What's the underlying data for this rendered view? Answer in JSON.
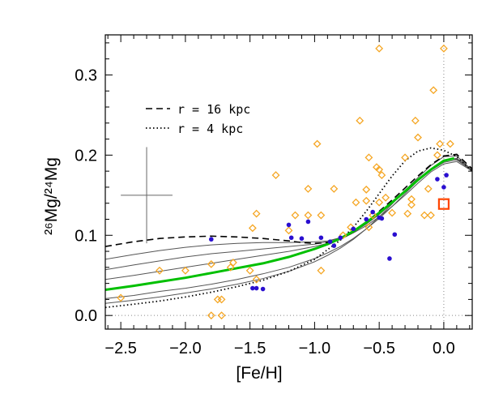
{
  "chart_data": {
    "type": "scatter",
    "xlabel": "[Fe/H]",
    "ylabel": "²⁶Mg/²⁴Mg",
    "xlim": [
      -2.62,
      0.22
    ],
    "ylim": [
      -0.017,
      0.35
    ],
    "xticks": [
      -2.5,
      -2.0,
      -1.5,
      -1.0,
      -0.5,
      0.0
    ],
    "xtick_labels": [
      "−2.5",
      "−2.0",
      "−1.5",
      "−1.0",
      "−0.5",
      "0.0"
    ],
    "yticks": [
      0.0,
      0.1,
      0.2,
      0.3
    ],
    "ytick_labels": [
      "0.0",
      "0.1",
      "0.2",
      "0.3"
    ],
    "legend": [
      {
        "label": "r = 16 kpc",
        "style": "dashed"
      },
      {
        "label": "r = 4 kpc",
        "style": "dotted"
      }
    ],
    "reference_lines": {
      "y": 0.0,
      "x": 0.0
    },
    "error_cross": {
      "x": -2.3,
      "y": 0.15,
      "dx": 0.2,
      "dy": 0.06
    },
    "sun": {
      "x": 0.0,
      "y": 0.139
    },
    "colors": {
      "diamond": "#f5a623",
      "dot": "#2a0fd0",
      "green": "#00c000",
      "sun": "#ff4500",
      "thin": "#555555",
      "black": "#000000"
    },
    "series": [
      {
        "marker": "diamond",
        "points": [
          [
            -2.5,
            0.022
          ],
          [
            -2.2,
            0.056
          ],
          [
            -2.0,
            0.056
          ],
          [
            -1.8,
            0.064
          ],
          [
            -1.8,
            0.0
          ],
          [
            -1.75,
            0.02
          ],
          [
            -1.72,
            0.02
          ],
          [
            -1.72,
            0.0
          ],
          [
            -1.65,
            0.06
          ],
          [
            -1.63,
            0.066
          ],
          [
            -1.5,
            0.056
          ],
          [
            -1.45,
            0.045
          ],
          [
            -1.48,
            0.109
          ],
          [
            -1.45,
            0.127
          ],
          [
            -1.3,
            0.175
          ],
          [
            -1.2,
            0.106
          ],
          [
            -1.15,
            0.125
          ],
          [
            -1.05,
            0.158
          ],
          [
            -1.05,
            0.125
          ],
          [
            -0.98,
            0.214
          ],
          [
            -0.95,
            0.125
          ],
          [
            -0.95,
            0.056
          ],
          [
            -0.85,
            0.158
          ],
          [
            -0.78,
            0.1
          ],
          [
            -0.72,
            0.11
          ],
          [
            -0.68,
            0.141
          ],
          [
            -0.65,
            0.243
          ],
          [
            -0.6,
            0.157
          ],
          [
            -0.6,
            0.143
          ],
          [
            -0.58,
            0.197
          ],
          [
            -0.58,
            0.11
          ],
          [
            -0.55,
            0.125
          ],
          [
            -0.52,
            0.185
          ],
          [
            -0.5,
            0.141
          ],
          [
            -0.5,
            0.182
          ],
          [
            -0.5,
            0.333
          ],
          [
            -0.48,
            0.175
          ],
          [
            -0.45,
            0.147
          ],
          [
            -0.4,
            0.128
          ],
          [
            -0.3,
            0.197
          ],
          [
            -0.28,
            0.127
          ],
          [
            -0.25,
            0.145
          ],
          [
            -0.25,
            0.138
          ],
          [
            -0.22,
            0.243
          ],
          [
            -0.2,
            0.222
          ],
          [
            -0.15,
            0.125
          ],
          [
            -0.12,
            0.158
          ],
          [
            -0.1,
            0.125
          ],
          [
            -0.08,
            0.281
          ],
          [
            -0.05,
            0.2
          ],
          [
            -0.03,
            0.214
          ],
          [
            0.0,
            0.333
          ],
          [
            0.05,
            0.214
          ]
        ]
      },
      {
        "marker": "dot",
        "points": [
          [
            -1.8,
            0.095
          ],
          [
            -1.48,
            0.034
          ],
          [
            -1.45,
            0.034
          ],
          [
            -1.4,
            0.033
          ],
          [
            -1.2,
            0.113
          ],
          [
            -1.18,
            0.097
          ],
          [
            -1.1,
            0.096
          ],
          [
            -1.05,
            0.117
          ],
          [
            -0.95,
            0.097
          ],
          [
            -0.88,
            0.092
          ],
          [
            -0.85,
            0.087
          ],
          [
            -0.8,
            0.097
          ],
          [
            -0.7,
            0.108
          ],
          [
            -0.6,
            0.12
          ],
          [
            -0.55,
            0.129
          ],
          [
            -0.5,
            0.122
          ],
          [
            -0.48,
            0.121
          ],
          [
            -0.42,
            0.071
          ],
          [
            -0.38,
            0.101
          ],
          [
            -0.05,
            0.17
          ],
          [
            0.0,
            0.16
          ],
          [
            0.02,
            0.175
          ]
        ]
      }
    ],
    "model_curves": [
      {
        "style": "green",
        "points": [
          [
            -2.62,
            0.032
          ],
          [
            -2.4,
            0.037
          ],
          [
            -2.2,
            0.042
          ],
          [
            -2.0,
            0.047
          ],
          [
            -1.8,
            0.053
          ],
          [
            -1.6,
            0.059
          ],
          [
            -1.4,
            0.065
          ],
          [
            -1.2,
            0.073
          ],
          [
            -1.0,
            0.083
          ],
          [
            -0.9,
            0.089
          ],
          [
            -0.8,
            0.096
          ],
          [
            -0.7,
            0.105
          ],
          [
            -0.6,
            0.116
          ],
          [
            -0.5,
            0.128
          ],
          [
            -0.4,
            0.141
          ],
          [
            -0.3,
            0.155
          ],
          [
            -0.2,
            0.169
          ],
          [
            -0.1,
            0.182
          ],
          [
            0.0,
            0.193
          ],
          [
            0.08,
            0.196
          ]
        ]
      },
      {
        "style": "dashed",
        "points": [
          [
            -2.62,
            0.086
          ],
          [
            -2.4,
            0.092
          ],
          [
            -2.2,
            0.096
          ],
          [
            -2.0,
            0.098
          ],
          [
            -1.8,
            0.099
          ],
          [
            -1.6,
            0.098
          ],
          [
            -1.4,
            0.096
          ],
          [
            -1.2,
            0.093
          ],
          [
            -1.1,
            0.091
          ],
          [
            -1.0,
            0.09
          ],
          [
            -0.9,
            0.091
          ],
          [
            -0.8,
            0.095
          ],
          [
            -0.7,
            0.104
          ],
          [
            -0.6,
            0.116
          ],
          [
            -0.5,
            0.13
          ],
          [
            -0.4,
            0.144
          ],
          [
            -0.3,
            0.159
          ],
          [
            -0.2,
            0.174
          ],
          [
            -0.1,
            0.188
          ],
          [
            0.0,
            0.199
          ],
          [
            0.1,
            0.201
          ],
          [
            0.22,
            0.183
          ]
        ]
      },
      {
        "style": "dotted",
        "points": [
          [
            -2.62,
            0.01
          ],
          [
            -2.4,
            0.014
          ],
          [
            -2.2,
            0.018
          ],
          [
            -2.0,
            0.023
          ],
          [
            -1.8,
            0.029
          ],
          [
            -1.6,
            0.036
          ],
          [
            -1.4,
            0.044
          ],
          [
            -1.2,
            0.055
          ],
          [
            -1.0,
            0.07
          ],
          [
            -0.8,
            0.094
          ],
          [
            -0.7,
            0.11
          ],
          [
            -0.6,
            0.13
          ],
          [
            -0.5,
            0.152
          ],
          [
            -0.4,
            0.174
          ],
          [
            -0.3,
            0.193
          ],
          [
            -0.2,
            0.205
          ],
          [
            -0.1,
            0.209
          ],
          [
            0.0,
            0.206
          ],
          [
            0.1,
            0.198
          ],
          [
            0.22,
            0.18
          ]
        ]
      },
      {
        "style": "thin",
        "points": [
          [
            -2.62,
            0.07
          ],
          [
            -2.4,
            0.076
          ],
          [
            -2.2,
            0.081
          ],
          [
            -2.0,
            0.085
          ],
          [
            -1.8,
            0.088
          ],
          [
            -1.6,
            0.09
          ],
          [
            -1.4,
            0.091
          ],
          [
            -1.2,
            0.091
          ],
          [
            -1.0,
            0.092
          ],
          [
            -0.9,
            0.093
          ],
          [
            -0.8,
            0.097
          ],
          [
            -0.7,
            0.104
          ],
          [
            -0.6,
            0.114
          ],
          [
            -0.5,
            0.126
          ],
          [
            -0.4,
            0.14
          ],
          [
            -0.3,
            0.154
          ],
          [
            -0.2,
            0.168
          ],
          [
            -0.1,
            0.182
          ],
          [
            0.0,
            0.193
          ],
          [
            0.1,
            0.196
          ],
          [
            0.22,
            0.182
          ]
        ]
      },
      {
        "style": "thin",
        "points": [
          [
            -2.62,
            0.057
          ],
          [
            -2.4,
            0.063
          ],
          [
            -2.2,
            0.068
          ],
          [
            -2.0,
            0.073
          ],
          [
            -1.8,
            0.077
          ],
          [
            -1.6,
            0.08
          ],
          [
            -1.4,
            0.083
          ],
          [
            -1.2,
            0.086
          ],
          [
            -1.0,
            0.089
          ],
          [
            -0.9,
            0.092
          ],
          [
            -0.8,
            0.097
          ],
          [
            -0.7,
            0.105
          ],
          [
            -0.6,
            0.115
          ],
          [
            -0.5,
            0.127
          ],
          [
            -0.4,
            0.14
          ],
          [
            -0.3,
            0.154
          ],
          [
            -0.2,
            0.168
          ],
          [
            -0.1,
            0.181
          ],
          [
            0.0,
            0.191
          ],
          [
            0.1,
            0.194
          ],
          [
            0.22,
            0.181
          ]
        ]
      },
      {
        "style": "thin",
        "points": [
          [
            -2.62,
            0.045
          ],
          [
            -2.4,
            0.05
          ],
          [
            -2.2,
            0.055
          ],
          [
            -2.0,
            0.06
          ],
          [
            -1.8,
            0.065
          ],
          [
            -1.6,
            0.07
          ],
          [
            -1.4,
            0.075
          ],
          [
            -1.2,
            0.08
          ],
          [
            -1.0,
            0.086
          ],
          [
            -0.9,
            0.09
          ],
          [
            -0.8,
            0.095
          ],
          [
            -0.7,
            0.103
          ],
          [
            -0.6,
            0.112
          ],
          [
            -0.5,
            0.123
          ],
          [
            -0.4,
            0.136
          ],
          [
            -0.3,
            0.15
          ],
          [
            -0.2,
            0.165
          ],
          [
            -0.1,
            0.179
          ],
          [
            0.0,
            0.189
          ],
          [
            0.1,
            0.192
          ],
          [
            0.22,
            0.18
          ]
        ]
      },
      {
        "style": "thin",
        "points": [
          [
            -2.62,
            0.021
          ],
          [
            -2.4,
            0.025
          ],
          [
            -2.2,
            0.03
          ],
          [
            -2.0,
            0.034
          ],
          [
            -1.8,
            0.039
          ],
          [
            -1.6,
            0.045
          ],
          [
            -1.4,
            0.052
          ],
          [
            -1.2,
            0.06
          ],
          [
            -1.0,
            0.071
          ],
          [
            -0.9,
            0.078
          ],
          [
            -0.8,
            0.086
          ],
          [
            -0.7,
            0.096
          ],
          [
            -0.6,
            0.108
          ],
          [
            -0.5,
            0.121
          ],
          [
            -0.4,
            0.136
          ],
          [
            -0.3,
            0.152
          ],
          [
            -0.2,
            0.168
          ],
          [
            -0.1,
            0.182
          ],
          [
            0.0,
            0.194
          ],
          [
            0.1,
            0.195
          ],
          [
            0.22,
            0.18
          ]
        ]
      },
      {
        "style": "thin",
        "points": [
          [
            -2.62,
            0.015
          ],
          [
            -2.4,
            0.019
          ],
          [
            -2.2,
            0.023
          ],
          [
            -2.0,
            0.028
          ],
          [
            -1.8,
            0.033
          ],
          [
            -1.6,
            0.039
          ],
          [
            -1.4,
            0.046
          ],
          [
            -1.2,
            0.055
          ],
          [
            -1.0,
            0.067
          ],
          [
            -0.9,
            0.075
          ],
          [
            -0.8,
            0.084
          ],
          [
            -0.7,
            0.095
          ],
          [
            -0.6,
            0.108
          ],
          [
            -0.5,
            0.123
          ],
          [
            -0.4,
            0.139
          ],
          [
            -0.3,
            0.156
          ],
          [
            -0.2,
            0.172
          ],
          [
            -0.1,
            0.187
          ],
          [
            0.0,
            0.198
          ],
          [
            0.1,
            0.199
          ],
          [
            0.22,
            0.181
          ]
        ]
      }
    ]
  }
}
